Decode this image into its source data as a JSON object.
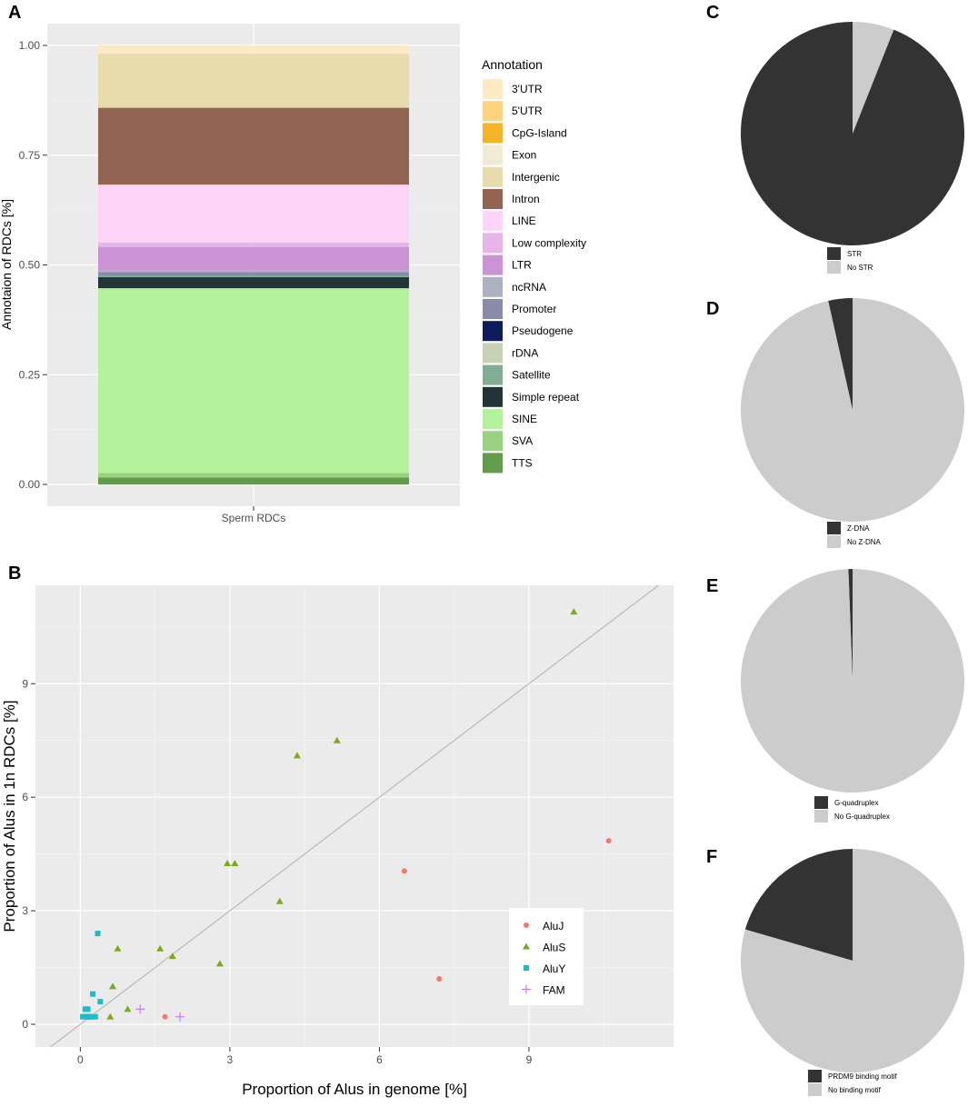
{
  "panels": {
    "a": "A",
    "b": "B",
    "c": "C",
    "d": "D",
    "e": "E",
    "f": "F"
  },
  "chart_data": [
    {
      "id": "A",
      "type": "bar",
      "stacked": true,
      "categories": [
        "Sperm RDCs"
      ],
      "xlabel": "",
      "ylabel": "Annotaion of RDCs [%]",
      "ylim": [
        0,
        1
      ],
      "yticks": [
        "0.00",
        "0.25",
        "0.50",
        "0.75",
        "1.00"
      ],
      "legend_title": "Annotation",
      "legend_position": "right",
      "series": [
        {
          "name": "3'UTR",
          "color": "#fde9c4",
          "values": [
            0.019
          ]
        },
        {
          "name": "5'UTR",
          "color": "#fdd37e",
          "values": [
            0.0
          ]
        },
        {
          "name": "CpG-Island",
          "color": "#f5b327",
          "values": [
            0.0
          ]
        },
        {
          "name": "Exon",
          "color": "#efecd2",
          "values": [
            0.0
          ]
        },
        {
          "name": "Intergenic",
          "color": "#e6dcac",
          "values": [
            0.123
          ]
        },
        {
          "name": "Intron",
          "color": "#946452",
          "values": [
            0.175
          ]
        },
        {
          "name": "LINE",
          "color": "#fdd3f7",
          "values": [
            0.132
          ]
        },
        {
          "name": "Low complexity",
          "color": "#e7b5e9",
          "values": [
            0.01
          ]
        },
        {
          "name": "LTR",
          "color": "#cc92d6",
          "values": [
            0.053
          ]
        },
        {
          "name": "ncRNA",
          "color": "#aeb1c2",
          "values": [
            0.004
          ]
        },
        {
          "name": "Promoter",
          "color": "#8a8aab",
          "values": [
            0.009
          ]
        },
        {
          "name": "Pseudogene",
          "color": "#0d1b5c",
          "values": [
            0.0
          ]
        },
        {
          "name": "rDNA",
          "color": "#c6d1b5",
          "values": [
            0.0
          ]
        },
        {
          "name": "Satellite",
          "color": "#7fae92",
          "values": [
            0.003
          ]
        },
        {
          "name": "Simple repeat",
          "color": "#233436",
          "values": [
            0.025
          ]
        },
        {
          "name": "SINE",
          "color": "#b3f19b",
          "values": [
            0.421
          ]
        },
        {
          "name": "SVA",
          "color": "#98d17f",
          "values": [
            0.01
          ]
        },
        {
          "name": "TTS",
          "color": "#629b4b",
          "values": [
            0.016
          ]
        }
      ]
    },
    {
      "id": "B",
      "type": "scatter",
      "xlabel": "Proportion of Alus in genome [%]",
      "ylabel": "Proportion of Alus in 1n RDCs [%]",
      "xlim": [
        -0.9,
        11.9
      ],
      "ylim": [
        -0.6,
        11.6
      ],
      "xticks": [
        0,
        3,
        6,
        9
      ],
      "yticks": [
        0,
        3,
        6,
        9
      ],
      "diagonal": "y = x",
      "legend_position": "right",
      "series": [
        {
          "name": "AluJ",
          "color": "#f2786d",
          "marker": "circle",
          "x": [
            1.7,
            6.5,
            7.2,
            10.6
          ],
          "y": [
            0.2,
            4.05,
            1.2,
            4.85
          ]
        },
        {
          "name": "AluS",
          "color": "#7caa18",
          "marker": "triangle",
          "x": [
            9.9,
            5.15,
            4.35,
            2.95,
            3.1,
            4.0,
            1.6,
            1.85,
            2.8,
            0.75,
            0.65,
            0.95,
            0.6,
            0.2
          ],
          "y": [
            10.9,
            7.5,
            7.1,
            4.25,
            4.25,
            3.25,
            2.0,
            1.8,
            1.6,
            2.0,
            1.0,
            0.4,
            0.2,
            0.2
          ]
        },
        {
          "name": "AluY",
          "color": "#1abfc5",
          "marker": "square",
          "x": [
            0.35,
            0.25,
            0.4,
            0.1,
            0.15,
            0.05,
            0.1,
            0.2,
            0.3,
            0.15
          ],
          "y": [
            2.4,
            0.8,
            0.6,
            0.4,
            0.4,
            0.2,
            0.2,
            0.2,
            0.2,
            0.2
          ]
        },
        {
          "name": "FAM",
          "color": "#c47cf2",
          "marker": "plus",
          "x": [
            1.2,
            2.0
          ],
          "y": [
            0.4,
            0.2
          ]
        }
      ]
    },
    {
      "id": "C",
      "type": "pie",
      "labels": [
        "STR",
        "No STR"
      ],
      "values": [
        94,
        6
      ],
      "colors": [
        "#333333",
        "#cccccc"
      ]
    },
    {
      "id": "D",
      "type": "pie",
      "labels": [
        "Z-DNA",
        "No Z-DNA"
      ],
      "values": [
        3.5,
        96.5
      ],
      "colors": [
        "#333333",
        "#cccccc"
      ]
    },
    {
      "id": "E",
      "type": "pie",
      "labels": [
        "G-quadruplex",
        "No G-quadruplex"
      ],
      "values": [
        0.6,
        99.4
      ],
      "colors": [
        "#333333",
        "#cccccc"
      ]
    },
    {
      "id": "F",
      "type": "pie",
      "labels": [
        "PRDM9 binding motif",
        "No binding motif"
      ],
      "values": [
        20.5,
        79.5
      ],
      "colors": [
        "#333333",
        "#cccccc"
      ]
    }
  ]
}
